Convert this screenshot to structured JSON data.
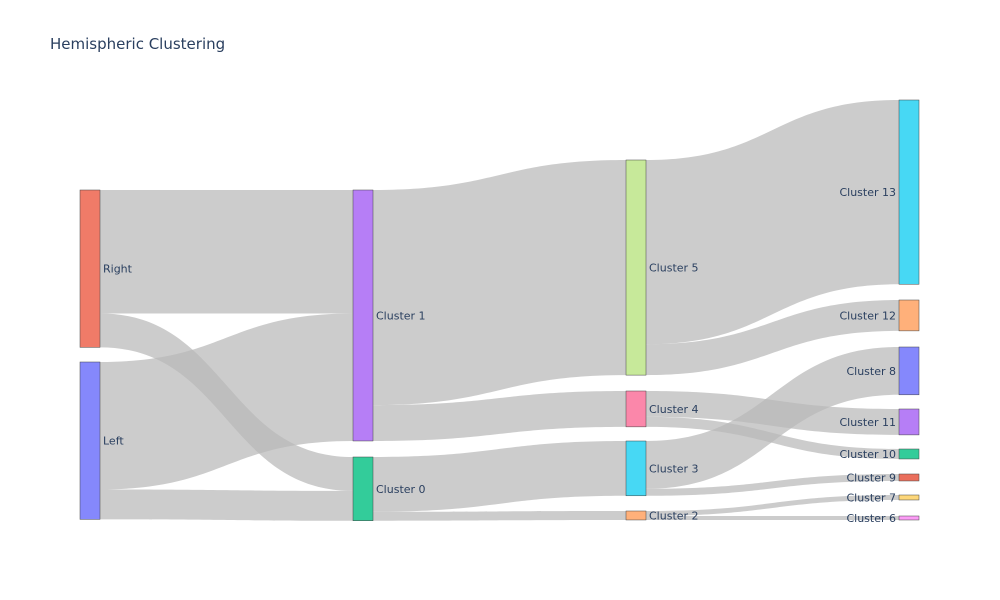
{
  "chart_data": {
    "type": "sankey",
    "title": "Hemispheric Clustering",
    "link_color": "#b8b8b8",
    "columns": [
      [
        "Right",
        "Left"
      ],
      [
        "Cluster 1",
        "Cluster 0"
      ],
      [
        "Cluster 5",
        "Cluster 4",
        "Cluster 3",
        "Cluster 2"
      ],
      [
        "Cluster 13",
        "Cluster 12",
        "Cluster 8",
        "Cluster 11",
        "Cluster 10",
        "Cluster 9",
        "Cluster 7",
        "Cluster 6"
      ]
    ],
    "nodes": [
      {
        "id": "Right",
        "label": "Right",
        "color": "#f07b68"
      },
      {
        "id": "Left",
        "label": "Left",
        "color": "#8588fc"
      },
      {
        "id": "Cluster 1",
        "label": "Cluster 1",
        "color": "#b67ef6"
      },
      {
        "id": "Cluster 0",
        "label": "Cluster 0",
        "color": "#33cc9a"
      },
      {
        "id": "Cluster 5",
        "label": "Cluster 5",
        "color": "#c7e99a"
      },
      {
        "id": "Cluster 4",
        "label": "Cluster 4",
        "color": "#fb87aa"
      },
      {
        "id": "Cluster 3",
        "label": "Cluster 3",
        "color": "#47d8f4"
      },
      {
        "id": "Cluster 2",
        "label": "Cluster 2",
        "color": "#ffb07a"
      },
      {
        "id": "Cluster 13",
        "label": "Cluster 13",
        "color": "#47d8f4"
      },
      {
        "id": "Cluster 12",
        "label": "Cluster 12",
        "color": "#ffb07a"
      },
      {
        "id": "Cluster 8",
        "label": "Cluster 8",
        "color": "#8588fc"
      },
      {
        "id": "Cluster 11",
        "label": "Cluster 11",
        "color": "#b67ef6"
      },
      {
        "id": "Cluster 10",
        "label": "Cluster 10",
        "color": "#33cc9a"
      },
      {
        "id": "Cluster 9",
        "label": "Cluster 9",
        "color": "#ea6e5c"
      },
      {
        "id": "Cluster 7",
        "label": "Cluster 7",
        "color": "#fdd77a"
      },
      {
        "id": "Cluster 6",
        "label": "Cluster 6",
        "color": "#fc9cf6"
      }
    ],
    "links": [
      {
        "source": "Right",
        "target": "Cluster 1",
        "value": 124
      },
      {
        "source": "Right",
        "target": "Cluster 0",
        "value": 34
      },
      {
        "source": "Left",
        "target": "Cluster 1",
        "value": 128
      },
      {
        "source": "Left",
        "target": "Cluster 0",
        "value": 30
      },
      {
        "source": "Cluster 1",
        "target": "Cluster 5",
        "value": 216
      },
      {
        "source": "Cluster 1",
        "target": "Cluster 4",
        "value": 36
      },
      {
        "source": "Cluster 0",
        "target": "Cluster 3",
        "value": 55
      },
      {
        "source": "Cluster 0",
        "target": "Cluster 2",
        "value": 9
      },
      {
        "source": "Cluster 5",
        "target": "Cluster 13",
        "value": 185
      },
      {
        "source": "Cluster 5",
        "target": "Cluster 12",
        "value": 31
      },
      {
        "source": "Cluster 4",
        "target": "Cluster 11",
        "value": 26
      },
      {
        "source": "Cluster 4",
        "target": "Cluster 10",
        "value": 10
      },
      {
        "source": "Cluster 3",
        "target": "Cluster 8",
        "value": 48
      },
      {
        "source": "Cluster 3",
        "target": "Cluster 9",
        "value": 7
      },
      {
        "source": "Cluster 2",
        "target": "Cluster 7",
        "value": 5
      },
      {
        "source": "Cluster 2",
        "target": "Cluster 6",
        "value": 4
      }
    ]
  }
}
